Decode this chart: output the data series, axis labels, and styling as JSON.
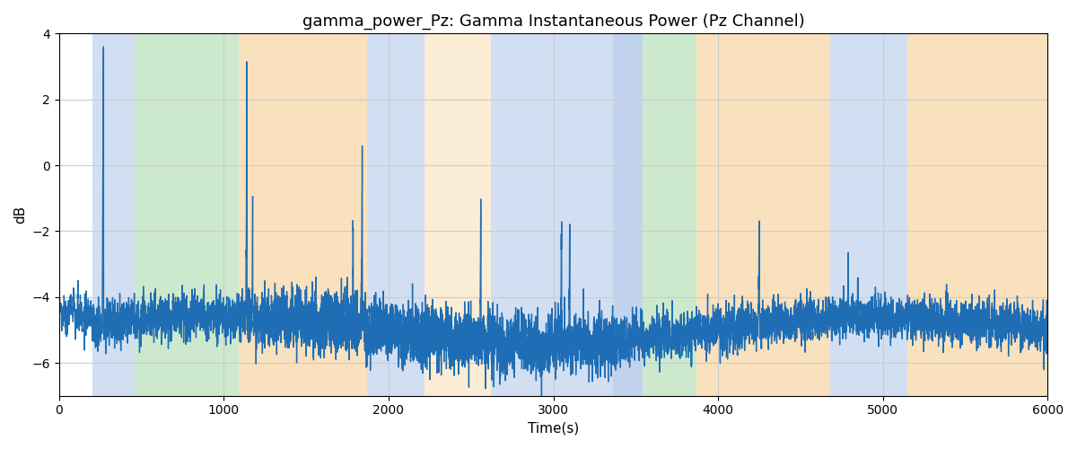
{
  "title": "gamma_power_Pz: Gamma Instantaneous Power (Pz Channel)",
  "xlabel": "Time(s)",
  "ylabel": "dB",
  "xlim": [
    0,
    6000
  ],
  "ylim": [
    -7,
    4
  ],
  "yticks": [
    -6,
    -4,
    -2,
    0,
    2,
    4
  ],
  "xticks": [
    0,
    1000,
    2000,
    3000,
    4000,
    5000,
    6000
  ],
  "line_color": "#1f6eb5",
  "line_width": 1.0,
  "bands": [
    {
      "xmin": 205,
      "xmax": 460,
      "color": "#aec6e8",
      "alpha": 0.55
    },
    {
      "xmin": 460,
      "xmax": 1090,
      "color": "#90d090",
      "alpha": 0.45
    },
    {
      "xmin": 1090,
      "xmax": 1870,
      "color": "#f5c98a",
      "alpha": 0.55
    },
    {
      "xmin": 1870,
      "xmax": 2220,
      "color": "#aec6e8",
      "alpha": 0.55
    },
    {
      "xmin": 2220,
      "xmax": 2620,
      "color": "#f5c98a",
      "alpha": 0.35
    },
    {
      "xmin": 2620,
      "xmax": 3360,
      "color": "#aec6e8",
      "alpha": 0.55
    },
    {
      "xmin": 3360,
      "xmax": 3540,
      "color": "#aec6e8",
      "alpha": 0.75
    },
    {
      "xmin": 3540,
      "xmax": 3870,
      "color": "#90d090",
      "alpha": 0.45
    },
    {
      "xmin": 3870,
      "xmax": 4680,
      "color": "#f5c98a",
      "alpha": 0.55
    },
    {
      "xmin": 4680,
      "xmax": 5150,
      "color": "#aec6e8",
      "alpha": 0.55
    },
    {
      "xmin": 5150,
      "xmax": 6000,
      "color": "#f5c98a",
      "alpha": 0.55
    }
  ],
  "seed": 42
}
